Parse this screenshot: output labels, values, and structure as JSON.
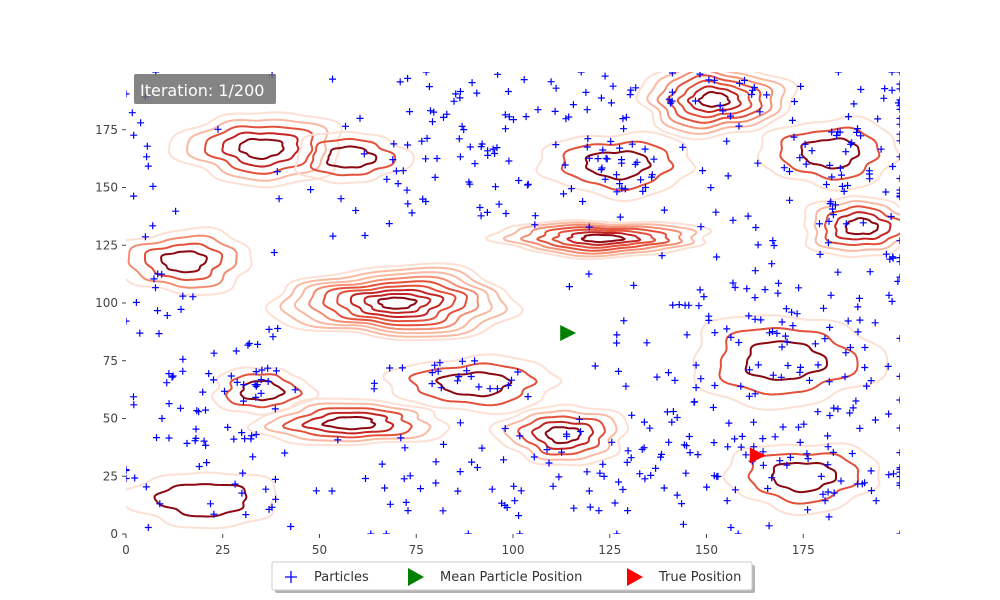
{
  "chart_data": {
    "type": "scatter",
    "overlay": "particle filter over a terrain elevation contour map",
    "xlim": [
      0,
      200
    ],
    "ylim": [
      0,
      200
    ],
    "x_ticks": [
      0,
      25,
      50,
      75,
      100,
      125,
      150,
      175
    ],
    "y_ticks": [
      0,
      25,
      50,
      75,
      100,
      125,
      150,
      175
    ],
    "grid": false,
    "legend_position": "bottom-center",
    "annotation": {
      "text": "Iteration: 1/200",
      "position": "top-left"
    },
    "contour_colors": [
      "#fde0d4",
      "#f9b9a2",
      "#f48e72",
      "#e3513a",
      "#c22523",
      "#8b0812"
    ],
    "contour_hills": [
      {
        "name": "central-ridge",
        "cx": 70,
        "cy": 100,
        "rx": 32,
        "ry": 16,
        "levels": 9
      },
      {
        "name": "ridge-right",
        "cx": 123,
        "cy": 128,
        "rx": 28,
        "ry": 8,
        "levels": 7
      },
      {
        "name": "peak-top",
        "cx": 152,
        "cy": 188,
        "rx": 20,
        "ry": 16,
        "levels": 7
      },
      {
        "name": "hill-top-left",
        "cx": 35,
        "cy": 167,
        "rx": 22,
        "ry": 16,
        "levels": 5
      },
      {
        "name": "hill-mid-left",
        "cx": 15,
        "cy": 118,
        "rx": 18,
        "ry": 14,
        "levels": 4
      },
      {
        "name": "hill-right",
        "cx": 190,
        "cy": 133,
        "rx": 16,
        "ry": 13,
        "levels": 5
      },
      {
        "name": "hill-low-center",
        "cx": 113,
        "cy": 43,
        "rx": 17,
        "ry": 13,
        "levels": 5
      },
      {
        "name": "hill-low-left",
        "cx": 58,
        "cy": 48,
        "rx": 25,
        "ry": 10,
        "levels": 5
      },
      {
        "name": "hill-top-mid",
        "cx": 58,
        "cy": 163,
        "rx": 15,
        "ry": 11,
        "levels": 3
      },
      {
        "name": "hill-top-right-mid",
        "cx": 127,
        "cy": 160,
        "rx": 20,
        "ry": 14,
        "levels": 3
      },
      {
        "name": "hill-center-low",
        "cx": 90,
        "cy": 65,
        "rx": 22,
        "ry": 12,
        "levels": 3
      },
      {
        "name": "hill-lower-left-2",
        "cx": 35,
        "cy": 62,
        "rx": 13,
        "ry": 10,
        "levels": 3
      },
      {
        "name": "hill-bottom-right",
        "cx": 175,
        "cy": 25,
        "rx": 20,
        "ry": 15,
        "levels": 3
      },
      {
        "name": "hill-right-mid",
        "cx": 170,
        "cy": 75,
        "rx": 25,
        "ry": 20,
        "levels": 3
      },
      {
        "name": "hill-top-right",
        "cx": 182,
        "cy": 165,
        "rx": 18,
        "ry": 15,
        "levels": 3
      },
      {
        "name": "hill-bottom-left",
        "cx": 20,
        "cy": 15,
        "rx": 20,
        "ry": 12,
        "levels": 2
      }
    ],
    "particle_clusters": [
      {
        "cx": 165,
        "cy": 75,
        "sx": 22,
        "sy": 30,
        "n": 150
      },
      {
        "cx": 185,
        "cy": 155,
        "sx": 16,
        "sy": 22,
        "n": 70
      },
      {
        "cx": 125,
        "cy": 25,
        "sx": 60,
        "sy": 12,
        "n": 140
      },
      {
        "cx": 20,
        "cy": 50,
        "sx": 12,
        "sy": 25,
        "n": 60
      },
      {
        "cx": 95,
        "cy": 160,
        "sx": 25,
        "sy": 15,
        "n": 80
      },
      {
        "cx": 125,
        "cy": 190,
        "sx": 55,
        "sy": 6,
        "n": 70
      },
      {
        "cx": 85,
        "cy": 65,
        "sx": 10,
        "sy": 6,
        "n": 22
      },
      {
        "cx": 35,
        "cy": 65,
        "sx": 5,
        "sy": 6,
        "n": 12
      },
      {
        "cx": 6,
        "cy": 140,
        "sx": 4,
        "sy": 50,
        "n": 20
      },
      {
        "cx": 130,
        "cy": 160,
        "sx": 12,
        "sy": 8,
        "n": 28
      }
    ],
    "mean_particle_position": {
      "x": 114,
      "y": 87
    },
    "true_position": {
      "x": 163,
      "y": 34
    },
    "series": [
      {
        "name": "Particles",
        "marker": "plus",
        "color": "#0000ff"
      },
      {
        "name": "Mean Particle Position",
        "marker": "triangle-right",
        "color": "#008000"
      },
      {
        "name": "True Position",
        "marker": "triangle-right",
        "color": "#ff0000"
      }
    ]
  }
}
